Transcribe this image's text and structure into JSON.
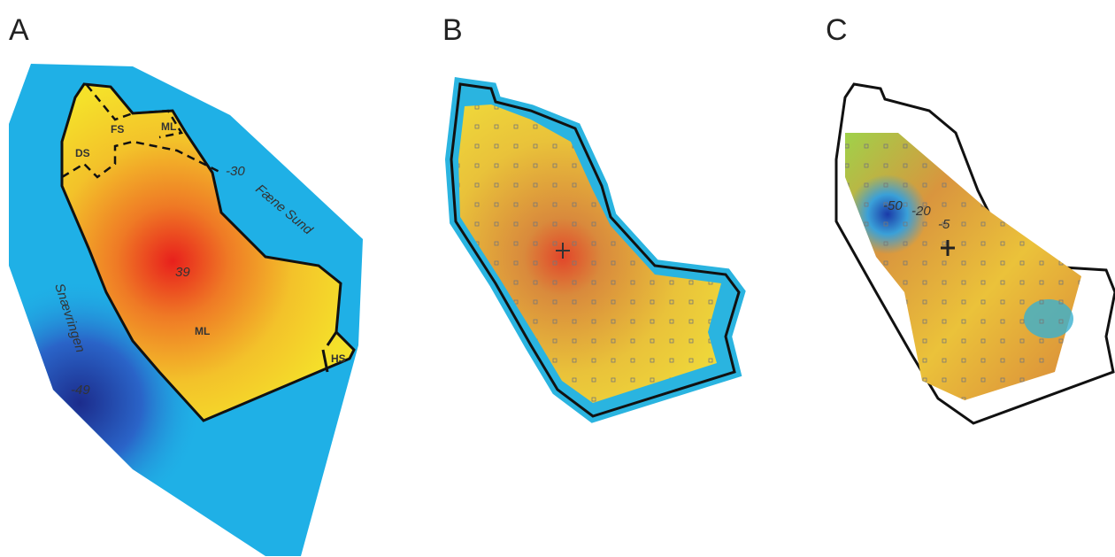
{
  "panels": [
    {
      "label": "A",
      "annotations": [
        "FS",
        "ML",
        "DS",
        "-30",
        "Fæne Sund",
        "39",
        "ML",
        "Snævringen",
        "-49",
        "HS"
      ]
    },
    {
      "label": "B"
    },
    {
      "label": "C",
      "annotations": [
        "-50",
        "-20",
        "-5"
      ]
    }
  ]
}
